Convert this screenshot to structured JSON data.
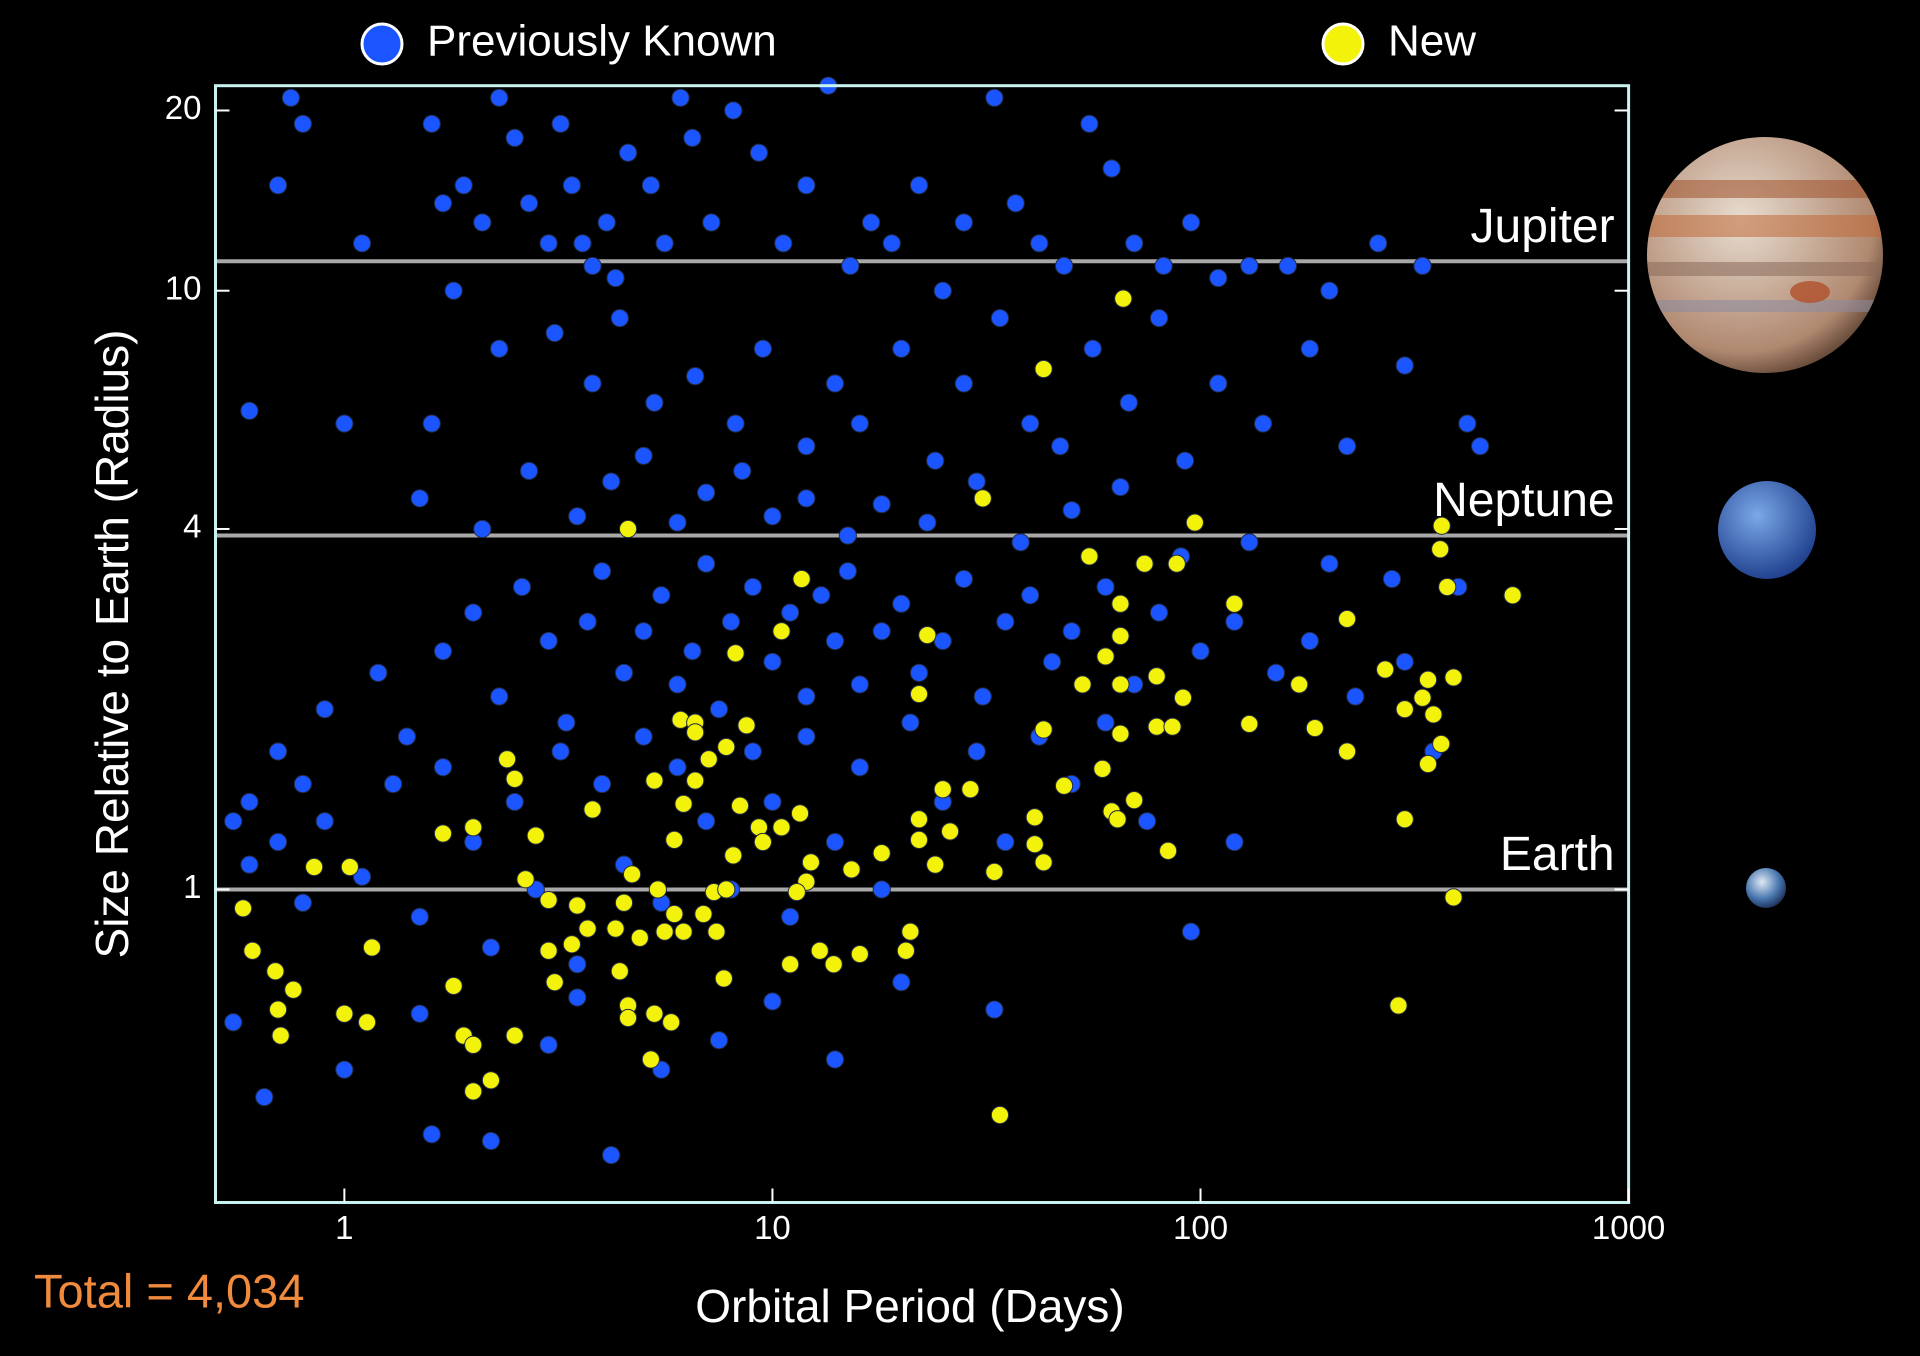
{
  "chart_data": {
    "type": "scatter",
    "xlabel": "Orbital Period (Days)",
    "ylabel": "Size Relative to Earth (Radius)",
    "annotation": "Total = 4,034",
    "xscale": "log",
    "yscale": "log",
    "xlim": [
      0.5,
      1000
    ],
    "ylim": [
      0.3,
      22
    ],
    "xticks": [
      1,
      10,
      100,
      1000
    ],
    "yticks": [
      1,
      4,
      10,
      20
    ],
    "legend": "top",
    "reference_lines": [
      {
        "label": "Jupiter",
        "value": 11.2
      },
      {
        "label": "Neptune",
        "value": 3.9
      },
      {
        "label": "Earth",
        "value": 1
      }
    ],
    "series": [
      {
        "name": "Previously Known",
        "color": "#1a55ff",
        "x": [
          0.7,
          0.75,
          0.8,
          1.1,
          1.6,
          1.7,
          1.9,
          2.1,
          2.3,
          2.5,
          2.7,
          3.0,
          3.2,
          3.4,
          3.6,
          3.8,
          4.1,
          4.3,
          4.6,
          5.2,
          5.6,
          6.1,
          6.5,
          7.2,
          8.1,
          9.3,
          10.6,
          12,
          13.5,
          15.2,
          17,
          19,
          22,
          25,
          28,
          33,
          37,
          42,
          48,
          55,
          62,
          70,
          82,
          95,
          110,
          130,
          160,
          200,
          260,
          330,
          1.8,
          2.3,
          3.1,
          3.8,
          4.4,
          5.3,
          6.6,
          8.2,
          9.5,
          12,
          14,
          16,
          20,
          24,
          28,
          34,
          40,
          47,
          56,
          68,
          80,
          92,
          110,
          140,
          180,
          220,
          300,
          420,
          1.6,
          1.0,
          0.6,
          1.5,
          2.1,
          2.7,
          3.5,
          4.2,
          5,
          6,
          7,
          8.5,
          10,
          12,
          15,
          18,
          23,
          30,
          38,
          50,
          65,
          90,
          130,
          200,
          280,
          400,
          450,
          0.9,
          1.2,
          1.4,
          1.7,
          2,
          2.3,
          2.6,
          3,
          3.3,
          3.7,
          4,
          4.5,
          5,
          5.5,
          6,
          6.5,
          7,
          7.5,
          8,
          9,
          10,
          11,
          12,
          13,
          14,
          15,
          16,
          18,
          20,
          22,
          25,
          28,
          31,
          35,
          40,
          45,
          50,
          60,
          70,
          80,
          100,
          120,
          150,
          180,
          230,
          300,
          350,
          0.6,
          0.7,
          0.8,
          0.55,
          0.6,
          0.7,
          0.8,
          0.9,
          1.1,
          1.3,
          1.5,
          1.7,
          2,
          2.2,
          2.5,
          2.8,
          3.2,
          3.5,
          4,
          4.5,
          5,
          5.5,
          6,
          7,
          8,
          9,
          10,
          11,
          12,
          14,
          16,
          18,
          21,
          25,
          30,
          35,
          42,
          50,
          60,
          75,
          95,
          120,
          0.55,
          0.65,
          1.0,
          1.5,
          1.6,
          2.2,
          3,
          3.5,
          4.2,
          5.5,
          7.5,
          10,
          14,
          20,
          33
        ],
        "values": [
          15,
          21,
          19,
          12,
          19,
          14,
          15,
          13,
          21,
          18,
          14,
          12,
          19,
          15,
          12,
          11,
          13,
          10.5,
          17,
          15,
          12,
          21,
          18,
          13,
          20,
          17,
          12,
          15,
          22,
          11,
          13,
          12,
          15,
          10,
          13,
          21,
          14,
          12,
          11,
          19,
          16,
          12,
          11,
          13,
          10.5,
          11,
          11,
          10,
          12,
          11,
          10,
          8,
          8.5,
          7,
          9,
          6.5,
          7.2,
          6,
          8,
          5.5,
          7,
          6,
          8,
          5.2,
          7,
          9,
          6,
          5.5,
          8,
          6.5,
          9,
          5.2,
          7,
          6,
          8,
          5.5,
          7.5,
          6,
          6,
          6,
          6.3,
          4.5,
          4,
          5,
          4.2,
          4.8,
          5.3,
          4.1,
          4.6,
          5,
          4.2,
          4.5,
          3.9,
          4.4,
          4.1,
          4.8,
          3.8,
          4.3,
          4.7,
          3.6,
          3.8,
          3.5,
          3.3,
          3.2,
          5.5,
          2,
          2.3,
          1.8,
          2.5,
          2.9,
          2.1,
          3.2,
          2.6,
          1.9,
          2.8,
          3.4,
          2.3,
          2.7,
          3.1,
          2.2,
          2.5,
          3.5,
          2.0,
          2.8,
          3.2,
          2.4,
          2.9,
          2.1,
          3.1,
          2.6,
          3.4,
          2.2,
          2.7,
          3,
          2.3,
          2.6,
          3.3,
          2.1,
          2.8,
          3.1,
          2.4,
          2.7,
          3.2,
          2.2,
          2.9,
          2.5,
          2.8,
          2.3,
          2.6,
          2.1,
          2.4,
          1.7,
          1.4,
          1.7,
          1.5,
          1.3,
          1.1,
          1.2,
          0.95,
          1.3,
          1.05,
          1.5,
          0.9,
          1.6,
          1.2,
          0.8,
          1.4,
          1.0,
          1.7,
          0.75,
          1.5,
          1.1,
          1.8,
          0.95,
          1.6,
          1.3,
          1.0,
          1.7,
          1.4,
          0.9,
          1.8,
          1.2,
          1.6,
          1.0,
          1.9,
          1.4,
          1.7,
          1.2,
          1.8,
          1.5,
          1.9,
          1.3,
          0.85,
          1.2,
          0.6,
          0.45,
          0.5,
          0.62,
          0.39,
          0.38,
          0.55,
          0.66,
          0.36,
          0.5,
          0.56,
          0.65,
          0.52,
          0.7,
          0.63
        ]
      },
      {
        "name": "New",
        "color": "#f2f20a",
        "x": [
          66,
          43,
          4.6,
          31,
          97,
          366,
          363,
          377,
          536,
          11.7,
          55,
          74,
          88,
          65,
          120,
          220,
          10.5,
          23,
          8.2,
          65,
          60,
          53,
          65,
          79,
          91,
          22,
          170,
          270,
          340,
          390,
          330,
          300,
          350,
          365,
          340,
          130,
          185,
          220,
          79,
          86,
          65,
          43,
          6.1,
          6.6,
          6.6,
          8.7,
          7.8,
          7.1,
          2.4,
          2.5,
          5.3,
          6.6,
          59,
          48,
          29,
          25,
          6.2,
          8.4,
          11.6,
          3.8,
          62,
          64,
          70,
          41,
          22,
          26,
          22,
          10.5,
          9.3,
          9.5,
          8.1,
          5.9,
          2.8,
          1.7,
          2.0,
          41,
          43,
          84,
          33,
          24,
          18,
          15.3,
          12.3,
          12,
          11.4,
          4.7,
          7.3,
          7.8,
          5.4,
          2.65,
          1.03,
          0.85,
          390,
          0.58,
          0.61,
          0.69,
          0.76,
          0.7,
          0.71,
          1.0,
          1.13,
          1.16,
          1.8,
          1.9,
          2.0,
          2.0,
          2.2,
          2.5,
          3.0,
          3.1,
          3.4,
          3.5,
          3.0,
          3.7,
          4.3,
          4.5,
          4.9,
          5.6,
          5.9,
          6.2,
          6.9,
          7.4,
          4.4,
          4.6,
          4.6,
          5.3,
          5.8,
          5.2,
          7.7,
          11,
          12.9,
          13.9,
          16,
          21,
          20.5,
          34,
          290,
          300
        ],
        "values": [
          9.7,
          7.4,
          4.0,
          4.5,
          4.1,
          4.05,
          3.7,
          3.2,
          3.1,
          3.3,
          3.6,
          3.5,
          3.5,
          3.0,
          3.0,
          2.83,
          2.7,
          2.66,
          2.48,
          2.65,
          2.45,
          2.2,
          2.2,
          2.27,
          2.09,
          2.12,
          2.2,
          2.33,
          2.24,
          2.26,
          2.09,
          2.0,
          1.96,
          1.75,
          1.62,
          1.89,
          1.86,
          1.7,
          1.87,
          1.87,
          1.82,
          1.85,
          1.92,
          1.9,
          1.83,
          1.88,
          1.73,
          1.65,
          1.65,
          1.53,
          1.52,
          1.52,
          1.59,
          1.49,
          1.47,
          1.47,
          1.39,
          1.38,
          1.34,
          1.36,
          1.35,
          1.31,
          1.41,
          1.32,
          1.31,
          1.25,
          1.21,
          1.27,
          1.27,
          1.2,
          1.14,
          1.21,
          1.23,
          1.24,
          1.27,
          1.19,
          1.11,
          1.16,
          1.07,
          1.1,
          1.15,
          1.08,
          1.11,
          1.03,
          0.99,
          1.06,
          0.99,
          1.0,
          1.0,
          1.04,
          1.09,
          1.09,
          0.97,
          0.93,
          0.79,
          0.73,
          0.68,
          0.63,
          0.57,
          0.62,
          0.6,
          0.8,
          0.69,
          0.57,
          0.55,
          0.46,
          0.48,
          0.57,
          0.79,
          0.7,
          0.81,
          0.94,
          0.96,
          0.86,
          0.86,
          0.95,
          0.83,
          0.85,
          0.91,
          0.85,
          0.91,
          0.85,
          0.73,
          0.64,
          0.61,
          0.62,
          0.6,
          0.52,
          0.71,
          0.75,
          0.79,
          0.75,
          0.78,
          0.85,
          0.79,
          0.42,
          0.64,
          1.31
        ]
      }
    ]
  }
}
